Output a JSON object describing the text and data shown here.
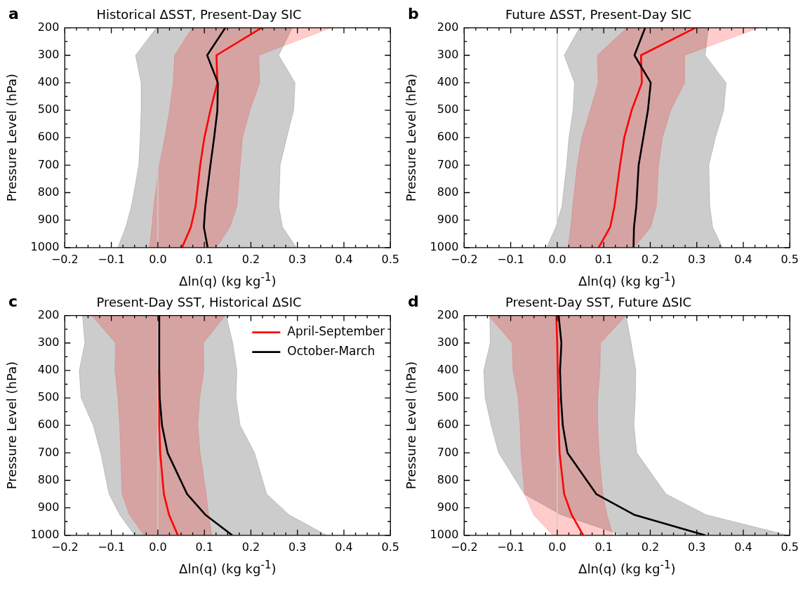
{
  "chart_data": [
    {
      "type": "line",
      "orientation": "horizontal",
      "title": "Historical ΔSST, Present-Day SIC",
      "xlabel": "Δln(q) (kg kg$^{-1}$)",
      "ylabel": "Pressure Level (hPa)",
      "annotations": [
        "a"
      ],
      "grid": false,
      "legend": false,
      "xlim": [
        -0.2,
        0.5
      ],
      "ylim": [
        1000,
        200
      ],
      "xticks": [
        {
          "value": -0.2,
          "label": "−0.2"
        },
        {
          "value": -0.175,
          "label": null
        },
        {
          "value": -0.15,
          "label": null
        },
        {
          "value": -0.125,
          "label": null
        },
        {
          "value": -0.1,
          "label": "−0.1"
        },
        {
          "value": -0.075,
          "label": null
        },
        {
          "value": -0.05,
          "label": null
        },
        {
          "value": -0.025,
          "label": null
        },
        {
          "value": 0,
          "label": "0.0"
        },
        {
          "value": 0.025,
          "label": null
        },
        {
          "value": 0.05,
          "label": null
        },
        {
          "value": 0.075,
          "label": null
        },
        {
          "value": 0.1,
          "label": "0.1"
        },
        {
          "value": 0.125,
          "label": null
        },
        {
          "value": 0.15,
          "label": null
        },
        {
          "value": 0.175,
          "label": null
        },
        {
          "value": 0.2,
          "label": "0.2"
        },
        {
          "value": 0.225,
          "label": null
        },
        {
          "value": 0.25,
          "label": null
        },
        {
          "value": 0.275,
          "label": null
        },
        {
          "value": 0.3,
          "label": "0.3"
        },
        {
          "value": 0.325,
          "label": null
        },
        {
          "value": 0.35,
          "label": null
        },
        {
          "value": 0.375,
          "label": null
        },
        {
          "value": 0.4,
          "label": "0.4"
        },
        {
          "value": 0.425,
          "label": null
        },
        {
          "value": 0.45,
          "label": null
        },
        {
          "value": 0.475,
          "label": null
        },
        {
          "value": 0.5,
          "label": "0.5"
        }
      ],
      "yticks": [
        200,
        {
          "value": 250,
          "label": null
        },
        300,
        {
          "value": 350,
          "label": null
        },
        400,
        {
          "value": 450,
          "label": null
        },
        500,
        {
          "value": 550,
          "label": null
        },
        600,
        {
          "value": 650,
          "label": null
        },
        700,
        {
          "value": 750,
          "label": null
        },
        800,
        {
          "value": 850,
          "label": null
        },
        900,
        {
          "value": 950,
          "label": null
        },
        1000
      ],
      "ref_lines": [
        {
          "axis": "x",
          "value": 0,
          "color": "#cccccc"
        }
      ],
      "series": [
        {
          "color": "#000000",
          "x": [
            200,
            300,
            400,
            500,
            600,
            700,
            850,
            925,
            1000
          ],
          "values": [
            0.145,
            0.106,
            0.129,
            0.128,
            0.121,
            0.113,
            0.102,
            0.099,
            0.107
          ],
          "lower": [
            -0.003,
            -0.048,
            -0.036,
            -0.036,
            -0.038,
            -0.041,
            -0.057,
            -0.069,
            -0.086
          ],
          "upper": [
            0.289,
            0.26,
            0.295,
            0.292,
            0.277,
            0.263,
            0.26,
            0.268,
            0.298
          ]
        },
        {
          "color": "#ff0000",
          "x": [
            200,
            300,
            400,
            500,
            600,
            700,
            850,
            925,
            1000
          ],
          "values": [
            0.223,
            0.126,
            0.128,
            0.113,
            0.1,
            0.091,
            0.081,
            0.071,
            0.052
          ],
          "lower": [
            0.074,
            0.036,
            0.033,
            0.025,
            0.015,
            0.003,
            -0.009,
            -0.013,
            -0.018
          ],
          "upper": [
            0.373,
            0.217,
            0.219,
            0.198,
            0.182,
            0.177,
            0.17,
            0.155,
            0.126
          ]
        }
      ]
    },
    {
      "type": "line",
      "orientation": "horizontal",
      "title": "Future ΔSST, Present-Day SIC",
      "xlabel": "Δln(q) (kg kg$^{-1}$)",
      "ylabel": "Pressure Level (hPa)",
      "annotations": [
        "b"
      ],
      "grid": false,
      "legend": false,
      "xlim": [
        -0.2,
        0.5
      ],
      "ylim": [
        1000,
        200
      ],
      "xticks": [
        {
          "value": -0.2,
          "label": "−0.2"
        },
        {
          "value": -0.175,
          "label": null
        },
        {
          "value": -0.15,
          "label": null
        },
        {
          "value": -0.125,
          "label": null
        },
        {
          "value": -0.1,
          "label": "−0.1"
        },
        {
          "value": -0.075,
          "label": null
        },
        {
          "value": -0.05,
          "label": null
        },
        {
          "value": -0.025,
          "label": null
        },
        {
          "value": 0,
          "label": "0.0"
        },
        {
          "value": 0.025,
          "label": null
        },
        {
          "value": 0.05,
          "label": null
        },
        {
          "value": 0.075,
          "label": null
        },
        {
          "value": 0.1,
          "label": "0.1"
        },
        {
          "value": 0.125,
          "label": null
        },
        {
          "value": 0.15,
          "label": null
        },
        {
          "value": 0.175,
          "label": null
        },
        {
          "value": 0.2,
          "label": "0.2"
        },
        {
          "value": 0.225,
          "label": null
        },
        {
          "value": 0.25,
          "label": null
        },
        {
          "value": 0.275,
          "label": null
        },
        {
          "value": 0.3,
          "label": "0.3"
        },
        {
          "value": 0.325,
          "label": null
        },
        {
          "value": 0.35,
          "label": null
        },
        {
          "value": 0.375,
          "label": null
        },
        {
          "value": 0.4,
          "label": "0.4"
        },
        {
          "value": 0.425,
          "label": null
        },
        {
          "value": 0.45,
          "label": null
        },
        {
          "value": 0.475,
          "label": null
        },
        {
          "value": 0.5,
          "label": "0.5"
        }
      ],
      "yticks": [
        200,
        {
          "value": 250,
          "label": null
        },
        300,
        {
          "value": 350,
          "label": null
        },
        400,
        {
          "value": 450,
          "label": null
        },
        500,
        {
          "value": 550,
          "label": null
        },
        600,
        {
          "value": 650,
          "label": null
        },
        700,
        {
          "value": 750,
          "label": null
        },
        800,
        {
          "value": 850,
          "label": null
        },
        900,
        {
          "value": 950,
          "label": null
        },
        1000
      ],
      "ref_lines": [
        {
          "axis": "x",
          "value": 0,
          "color": "#cccccc"
        }
      ],
      "series": [
        {
          "color": "#000000",
          "x": [
            200,
            300,
            400,
            500,
            600,
            700,
            850,
            925,
            1000
          ],
          "values": [
            0.189,
            0.166,
            0.201,
            0.195,
            0.185,
            0.175,
            0.17,
            0.165,
            0.164
          ],
          "lower": [
            0.048,
            0.015,
            0.037,
            0.034,
            0.025,
            0.02,
            0.01,
            -0.003,
            -0.023
          ],
          "upper": [
            0.325,
            0.318,
            0.363,
            0.358,
            0.34,
            0.326,
            0.328,
            0.334,
            0.355
          ]
        },
        {
          "color": "#ff0000",
          "x": [
            200,
            300,
            400,
            500,
            600,
            700,
            850,
            925,
            1000
          ],
          "values": [
            0.297,
            0.18,
            0.182,
            0.16,
            0.144,
            0.135,
            0.123,
            0.114,
            0.089
          ],
          "lower": [
            0.15,
            0.086,
            0.088,
            0.071,
            0.053,
            0.043,
            0.033,
            0.029,
            0.023
          ],
          "upper": [
            0.434,
            0.274,
            0.274,
            0.244,
            0.226,
            0.218,
            0.213,
            0.201,
            0.165
          ]
        }
      ]
    },
    {
      "type": "line",
      "orientation": "horizontal",
      "title": "Present-Day SST, Historical ΔSIC",
      "xlabel": "Δln(q) (kg kg$^{-1}$)",
      "ylabel": "Pressure Level (hPa)",
      "annotations": [
        "c"
      ],
      "grid": false,
      "legend": "top right",
      "xlim": [
        -0.2,
        0.5
      ],
      "ylim": [
        1000,
        200
      ],
      "xticks": [
        {
          "value": -0.2,
          "label": "−0.2"
        },
        {
          "value": -0.175,
          "label": null
        },
        {
          "value": -0.15,
          "label": null
        },
        {
          "value": -0.125,
          "label": null
        },
        {
          "value": -0.1,
          "label": "−0.1"
        },
        {
          "value": -0.075,
          "label": null
        },
        {
          "value": -0.05,
          "label": null
        },
        {
          "value": -0.025,
          "label": null
        },
        {
          "value": 0,
          "label": "0.0"
        },
        {
          "value": 0.025,
          "label": null
        },
        {
          "value": 0.05,
          "label": null
        },
        {
          "value": 0.075,
          "label": null
        },
        {
          "value": 0.1,
          "label": "0.1"
        },
        {
          "value": 0.125,
          "label": null
        },
        {
          "value": 0.15,
          "label": null
        },
        {
          "value": 0.175,
          "label": null
        },
        {
          "value": 0.2,
          "label": "0.2"
        },
        {
          "value": 0.225,
          "label": null
        },
        {
          "value": 0.25,
          "label": null
        },
        {
          "value": 0.275,
          "label": null
        },
        {
          "value": 0.3,
          "label": "0.3"
        },
        {
          "value": 0.325,
          "label": null
        },
        {
          "value": 0.35,
          "label": null
        },
        {
          "value": 0.375,
          "label": null
        },
        {
          "value": 0.4,
          "label": "0.4"
        },
        {
          "value": 0.425,
          "label": null
        },
        {
          "value": 0.45,
          "label": null
        },
        {
          "value": 0.475,
          "label": null
        },
        {
          "value": 0.5,
          "label": "0.5"
        }
      ],
      "yticks": [
        200,
        {
          "value": 250,
          "label": null
        },
        300,
        {
          "value": 350,
          "label": null
        },
        400,
        {
          "value": 450,
          "label": null
        },
        500,
        {
          "value": 550,
          "label": null
        },
        600,
        {
          "value": 650,
          "label": null
        },
        700,
        {
          "value": 750,
          "label": null
        },
        800,
        {
          "value": 850,
          "label": null
        },
        900,
        {
          "value": 950,
          "label": null
        },
        1000
      ],
      "ref_lines": [
        {
          "axis": "x",
          "value": 0,
          "color": "#cccccc"
        }
      ],
      "series": [
        {
          "name": "October-March",
          "color": "#000000",
          "x": [
            200,
            300,
            400,
            500,
            600,
            700,
            850,
            925,
            1000
          ],
          "values": [
            0.003,
            0.003,
            0.003,
            0.004,
            0.009,
            0.021,
            0.063,
            0.102,
            0.16
          ],
          "lower": [
            -0.162,
            -0.157,
            -0.169,
            -0.165,
            -0.139,
            -0.123,
            -0.105,
            -0.082,
            -0.05
          ],
          "upper": [
            0.147,
            0.161,
            0.17,
            0.168,
            0.177,
            0.208,
            0.234,
            0.282,
            0.363
          ]
        },
        {
          "name": "April-September",
          "color": "#ff0000",
          "x": [
            200,
            300,
            400,
            500,
            600,
            700,
            850,
            925,
            1000
          ],
          "values": [
            null,
            null,
            0.003,
            0.003,
            0.003,
            0.005,
            0.013,
            0.024,
            0.043
          ],
          "lower": [
            -0.142,
            -0.091,
            -0.092,
            -0.086,
            -0.082,
            -0.08,
            -0.077,
            -0.061,
            -0.03
          ],
          "upper": [
            0.145,
            0.098,
            0.099,
            0.09,
            0.086,
            0.091,
            0.104,
            0.109,
            0.116
          ]
        }
      ]
    },
    {
      "type": "line",
      "orientation": "horizontal",
      "title": "Present-Day SST, Future ΔSIC",
      "xlabel": "Δln(q) (kg kg$^{-1}$)",
      "ylabel": "Pressure Level (hPa)",
      "annotations": [
        "d"
      ],
      "grid": false,
      "legend": false,
      "xlim": [
        -0.2,
        0.5
      ],
      "ylim": [
        1000,
        200
      ],
      "xticks": [
        {
          "value": -0.2,
          "label": "−0.2"
        },
        {
          "value": -0.175,
          "label": null
        },
        {
          "value": -0.15,
          "label": null
        },
        {
          "value": -0.125,
          "label": null
        },
        {
          "value": -0.1,
          "label": "−0.1"
        },
        {
          "value": -0.075,
          "label": null
        },
        {
          "value": -0.05,
          "label": null
        },
        {
          "value": -0.025,
          "label": null
        },
        {
          "value": 0,
          "label": "0.0"
        },
        {
          "value": 0.025,
          "label": null
        },
        {
          "value": 0.05,
          "label": null
        },
        {
          "value": 0.075,
          "label": null
        },
        {
          "value": 0.1,
          "label": "0.1"
        },
        {
          "value": 0.125,
          "label": null
        },
        {
          "value": 0.15,
          "label": null
        },
        {
          "value": 0.175,
          "label": null
        },
        {
          "value": 0.2,
          "label": "0.2"
        },
        {
          "value": 0.225,
          "label": null
        },
        {
          "value": 0.25,
          "label": null
        },
        {
          "value": 0.275,
          "label": null
        },
        {
          "value": 0.3,
          "label": "0.3"
        },
        {
          "value": 0.325,
          "label": null
        },
        {
          "value": 0.35,
          "label": null
        },
        {
          "value": 0.375,
          "label": null
        },
        {
          "value": 0.4,
          "label": "0.4"
        },
        {
          "value": 0.425,
          "label": null
        },
        {
          "value": 0.45,
          "label": null
        },
        {
          "value": 0.475,
          "label": null
        },
        {
          "value": 0.5,
          "label": "0.5"
        }
      ],
      "yticks": [
        200,
        {
          "value": 250,
          "label": null
        },
        300,
        {
          "value": 350,
          "label": null
        },
        400,
        {
          "value": 450,
          "label": null
        },
        500,
        {
          "value": 550,
          "label": null
        },
        600,
        {
          "value": 650,
          "label": null
        },
        700,
        {
          "value": 750,
          "label": null
        },
        800,
        {
          "value": 850,
          "label": null
        },
        900,
        {
          "value": 950,
          "label": null
        },
        1000
      ],
      "ref_lines": [
        {
          "axis": "x",
          "value": 0,
          "color": "#cccccc"
        }
      ],
      "series": [
        {
          "color": "#000000",
          "x": [
            200,
            300,
            400,
            500,
            600,
            700,
            850,
            925,
            1000
          ],
          "values": [
            0.003,
            0.009,
            0.006,
            0.008,
            0.012,
            0.022,
            0.084,
            0.165,
            0.318
          ],
          "lower": [
            -0.145,
            -0.144,
            -0.158,
            -0.155,
            -0.142,
            -0.126,
            -0.071,
            0.008,
            0.14
          ],
          "upper": [
            0.148,
            0.159,
            0.169,
            0.168,
            0.165,
            0.171,
            0.234,
            0.32,
            0.496
          ]
        },
        {
          "color": "#ff0000",
          "x": [
            200,
            300,
            400,
            500,
            600,
            700,
            850,
            925,
            1000
          ],
          "values": [
            -0.002,
            0,
            0.001,
            0.002,
            0.003,
            0.005,
            0.015,
            0.031,
            0.056
          ],
          "lower": [
            -0.148,
            -0.097,
            -0.095,
            -0.084,
            -0.08,
            -0.078,
            -0.07,
            -0.051,
            -0.01
          ],
          "upper": [
            0.148,
            0.093,
            0.092,
            0.087,
            0.087,
            0.09,
            0.098,
            0.107,
            0.12
          ]
        }
      ]
    }
  ]
}
